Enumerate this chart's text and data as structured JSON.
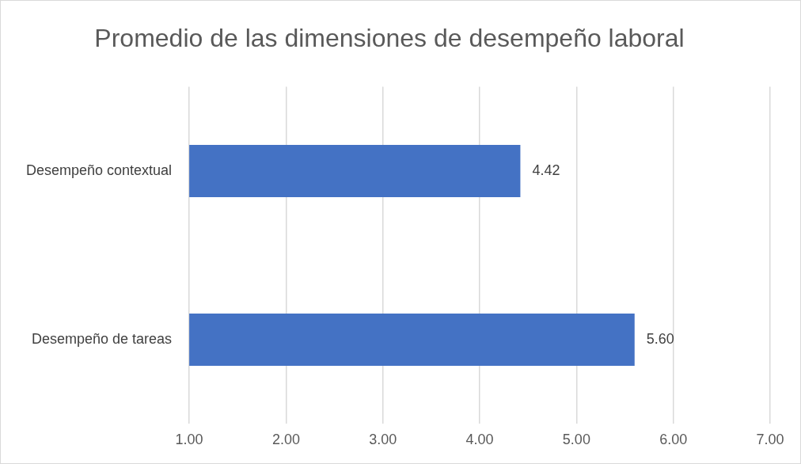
{
  "chart_data": {
    "type": "bar",
    "orientation": "horizontal",
    "title": "Promedio de las dimensiones de desempeño laboral",
    "categories": [
      "Desempeño contextual",
      "Desempeño de tareas"
    ],
    "values": [
      4.42,
      5.6
    ],
    "color": "#4472c4",
    "value_labels": [
      "4.42",
      "5.60"
    ],
    "xlim": [
      1,
      7
    ],
    "xticks": [
      {
        "value": 1,
        "label": "1.00"
      },
      {
        "value": 2,
        "label": "2.00"
      },
      {
        "value": 3,
        "label": "3.00"
      },
      {
        "value": 4,
        "label": "4.00"
      },
      {
        "value": 5,
        "label": "5.00"
      },
      {
        "value": 6,
        "label": "6.00"
      },
      {
        "value": 7,
        "label": "7.00"
      }
    ],
    "grid": "x",
    "legend": false
  }
}
